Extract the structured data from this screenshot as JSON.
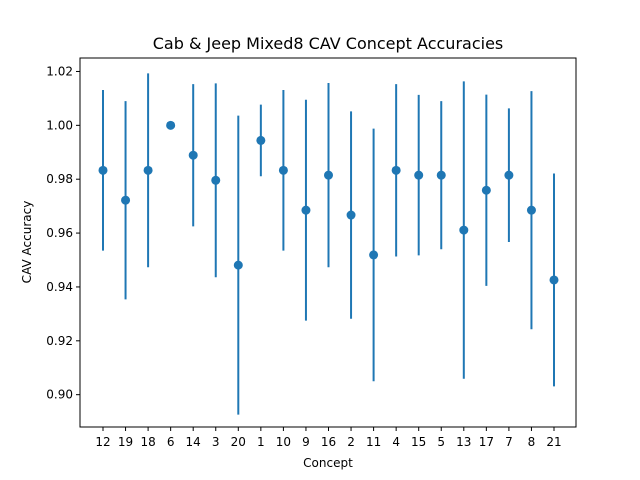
{
  "chart_data": {
    "type": "scatter",
    "title": "Cab & Jeep Mixed8 CAV Concept Accuracies",
    "xlabel": "Concept",
    "ylabel": "CAV Accuracy",
    "ylim": [
      0.888,
      1.025
    ],
    "yticks": [
      "0.90",
      "0.92",
      "0.94",
      "0.96",
      "0.98",
      "1.00",
      "1.02"
    ],
    "grid": false,
    "color": "#1f77b4",
    "categories": [
      "12",
      "19",
      "18",
      "6",
      "14",
      "3",
      "20",
      "1",
      "10",
      "9",
      "16",
      "2",
      "11",
      "4",
      "15",
      "5",
      "13",
      "17",
      "7",
      "8",
      "21"
    ],
    "values": [
      0.9833,
      0.9722,
      0.9833,
      1.0,
      0.9889,
      0.9796,
      0.9481,
      0.9944,
      0.9833,
      0.9685,
      0.9815,
      0.9667,
      0.9519,
      0.9833,
      0.9815,
      0.9815,
      0.9611,
      0.9759,
      0.9815,
      0.9685,
      0.9426
    ],
    "errors": [
      0.0298,
      0.0368,
      0.036,
      0.0,
      0.0264,
      0.036,
      0.0555,
      0.0133,
      0.0298,
      0.041,
      0.0342,
      0.0385,
      0.0469,
      0.032,
      0.0298,
      0.0275,
      0.0552,
      0.0355,
      0.0248,
      0.0442,
      0.0395
    ]
  }
}
